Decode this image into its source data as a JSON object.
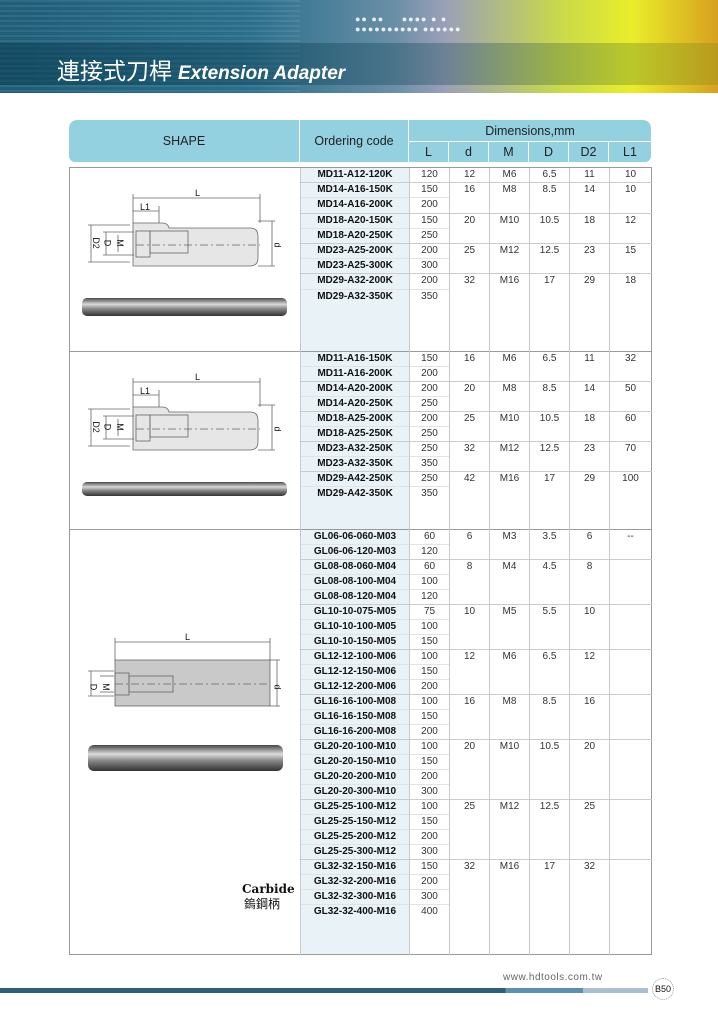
{
  "header": {
    "title_zh": "連接式刀桿",
    "title_en": "Extension Adapter"
  },
  "columns": {
    "shape": "SHAPE",
    "code": "Ordering code",
    "dims": "Dimensions,mm",
    "L": "L",
    "d": "d",
    "M": "M",
    "D": "D",
    "D2": "D2",
    "L1": "L1"
  },
  "sections": [
    {
      "groups": [
        {
          "d": "12",
          "M": "M6",
          "D": "6.5",
          "D2": "11",
          "L1": "10",
          "items": [
            [
              "MD11-A12-120K",
              "120"
            ]
          ]
        },
        {
          "d": "16",
          "M": "M8",
          "D": "8.5",
          "D2": "14",
          "L1": "10",
          "items": [
            [
              "MD14-A16-150K",
              "150"
            ],
            [
              "MD14-A16-200K",
              "200"
            ]
          ]
        },
        {
          "d": "20",
          "M": "M10",
          "D": "10.5",
          "D2": "18",
          "L1": "12",
          "items": [
            [
              "MD18-A20-150K",
              "150"
            ],
            [
              "MD18-A20-250K",
              "250"
            ]
          ]
        },
        {
          "d": "25",
          "M": "M12",
          "D": "12.5",
          "D2": "23",
          "L1": "15",
          "items": [
            [
              "MD23-A25-200K",
              "200"
            ],
            [
              "MD23-A25-300K",
              "300"
            ]
          ]
        },
        {
          "d": "32",
          "M": "M16",
          "D": "17",
          "D2": "29",
          "L1": "18",
          "items": [
            [
              "MD29-A32-200K",
              "200"
            ],
            [
              "MD29-A32-350K",
              "350"
            ]
          ]
        }
      ]
    },
    {
      "groups": [
        {
          "d": "16",
          "M": "M6",
          "D": "6.5",
          "D2": "11",
          "L1": "32",
          "items": [
            [
              "MD11-A16-150K",
              "150"
            ],
            [
              "MD11-A16-200K",
              "200"
            ]
          ]
        },
        {
          "d": "20",
          "M": "M8",
          "D": "8.5",
          "D2": "14",
          "L1": "50",
          "items": [
            [
              "MD14-A20-200K",
              "200"
            ],
            [
              "MD14-A20-250K",
              "250"
            ]
          ]
        },
        {
          "d": "25",
          "M": "M10",
          "D": "10.5",
          "D2": "18",
          "L1": "60",
          "items": [
            [
              "MD18-A25-200K",
              "200"
            ],
            [
              "MD18-A25-250K",
              "250"
            ]
          ]
        },
        {
          "d": "32",
          "M": "M12",
          "D": "12.5",
          "D2": "23",
          "L1": "70",
          "items": [
            [
              "MD23-A32-250K",
              "250"
            ],
            [
              "MD23-A32-350K",
              "350"
            ]
          ]
        },
        {
          "d": "42",
          "M": "M16",
          "D": "17",
          "D2": "29",
          "L1": "100",
          "items": [
            [
              "MD29-A42-250K",
              "250"
            ],
            [
              "MD29-A42-350K",
              "350"
            ]
          ]
        }
      ]
    },
    {
      "carbide_en": "Carbide",
      "carbide_zh": "鎢鋼柄",
      "groups": [
        {
          "d": "6",
          "M": "M3",
          "D": "3.5",
          "D2": "6",
          "L1": "--",
          "items": [
            [
              "GL06-06-060-M03",
              "60"
            ],
            [
              "GL06-06-120-M03",
              "120"
            ]
          ]
        },
        {
          "d": "8",
          "M": "M4",
          "D": "4.5",
          "D2": "8",
          "L1": "",
          "items": [
            [
              "GL08-08-060-M04",
              "60"
            ],
            [
              "GL08-08-100-M04",
              "100"
            ],
            [
              "GL08-08-120-M04",
              "120"
            ]
          ]
        },
        {
          "d": "10",
          "M": "M5",
          "D": "5.5",
          "D2": "10",
          "L1": "",
          "items": [
            [
              "GL10-10-075-M05",
              "75"
            ],
            [
              "GL10-10-100-M05",
              "100"
            ],
            [
              "GL10-10-150-M05",
              "150"
            ]
          ]
        },
        {
          "d": "12",
          "M": "M6",
          "D": "6.5",
          "D2": "12",
          "L1": "",
          "items": [
            [
              "GL12-12-100-M06",
              "100"
            ],
            [
              "GL12-12-150-M06",
              "150"
            ],
            [
              "GL12-12-200-M06",
              "200"
            ]
          ]
        },
        {
          "d": "16",
          "M": "M8",
          "D": "8.5",
          "D2": "16",
          "L1": "",
          "items": [
            [
              "GL16-16-100-M08",
              "100"
            ],
            [
              "GL16-16-150-M08",
              "150"
            ],
            [
              "GL16-16-200-M08",
              "200"
            ]
          ]
        },
        {
          "d": "20",
          "M": "M10",
          "D": "10.5",
          "D2": "20",
          "L1": "",
          "items": [
            [
              "GL20-20-100-M10",
              "100"
            ],
            [
              "GL20-20-150-M10",
              "150"
            ],
            [
              "GL20-20-200-M10",
              "200"
            ],
            [
              "GL20-20-300-M10",
              "300"
            ]
          ]
        },
        {
          "d": "25",
          "M": "M12",
          "D": "12.5",
          "D2": "25",
          "L1": "",
          "items": [
            [
              "GL25-25-100-M12",
              "100"
            ],
            [
              "GL25-25-150-M12",
              "150"
            ],
            [
              "GL25-25-200-M12",
              "200"
            ],
            [
              "GL25-25-300-M12",
              "300"
            ]
          ]
        },
        {
          "d": "32",
          "M": "M16",
          "D": "17",
          "D2": "32",
          "L1": "",
          "items": [
            [
              "GL32-32-150-M16",
              "150"
            ],
            [
              "GL32-32-200-M16",
              "200"
            ],
            [
              "GL32-32-300-M16",
              "300"
            ],
            [
              "GL32-32-400-M16",
              "400"
            ]
          ]
        }
      ]
    }
  ],
  "drawing_labels": {
    "L": "L",
    "L1": "L1",
    "D2": "D2",
    "D": "D",
    "M": "M",
    "d": "d"
  },
  "footer": {
    "website": "www.hdtools.com.tw",
    "page": "B50"
  }
}
